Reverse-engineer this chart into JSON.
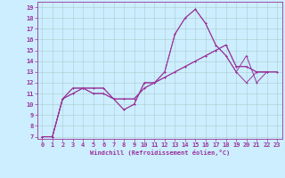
{
  "xlabel": "Windchill (Refroidissement éolien,°C)",
  "bg_color": "#cceeff",
  "line_color": "#993399",
  "grid_color": "#aacccc",
  "xlim": [
    -0.5,
    23.5
  ],
  "ylim": [
    6.8,
    19.5
  ],
  "yticks": [
    7,
    8,
    9,
    10,
    11,
    12,
    13,
    14,
    15,
    16,
    17,
    18,
    19
  ],
  "xticks": [
    0,
    1,
    2,
    3,
    4,
    5,
    6,
    7,
    8,
    9,
    10,
    11,
    12,
    13,
    14,
    15,
    16,
    17,
    18,
    19,
    20,
    21,
    22,
    23
  ],
  "line1_x": [
    0,
    1,
    2,
    3,
    4,
    5,
    6,
    7,
    8,
    9,
    10,
    11,
    12,
    13,
    14,
    15,
    16,
    17,
    18,
    19,
    20,
    21,
    22
  ],
  "line1_y": [
    7.0,
    7.0,
    10.5,
    11.0,
    11.5,
    11.5,
    11.5,
    10.5,
    9.5,
    10.0,
    12.0,
    12.0,
    13.0,
    16.5,
    18.0,
    18.8,
    17.5,
    15.5,
    14.5,
    13.0,
    12.0,
    13.0,
    13.0
  ],
  "line2_x": [
    0,
    1,
    2,
    3,
    4,
    5,
    6,
    7,
    8,
    9,
    10,
    11,
    12,
    13,
    14,
    15,
    16,
    17,
    18,
    19,
    20,
    21,
    22,
    23
  ],
  "line2_y": [
    7.0,
    7.0,
    10.5,
    11.5,
    11.5,
    11.0,
    11.0,
    10.5,
    10.5,
    10.5,
    11.5,
    12.0,
    12.5,
    13.0,
    13.5,
    14.0,
    14.5,
    15.0,
    15.5,
    13.5,
    13.5,
    13.0,
    13.0,
    13.0
  ],
  "line3_x": [
    0,
    1,
    2,
    3,
    4,
    5,
    6,
    7,
    8,
    9,
    10,
    11,
    12,
    13,
    14,
    15,
    16,
    17,
    18,
    19,
    20,
    21,
    22
  ],
  "line3_y": [
    7.0,
    7.0,
    10.5,
    11.0,
    11.5,
    11.5,
    11.5,
    10.5,
    9.5,
    10.0,
    12.0,
    12.0,
    13.0,
    16.5,
    18.0,
    18.8,
    17.5,
    15.5,
    14.5,
    13.0,
    14.5,
    12.0,
    13.0
  ],
  "line4_x": [
    0,
    1,
    2,
    3,
    4,
    5,
    6,
    7,
    8,
    9,
    10,
    11,
    12,
    13,
    14,
    15,
    16,
    17,
    18,
    19,
    20,
    21,
    22,
    23
  ],
  "line4_y": [
    7.0,
    7.0,
    10.5,
    11.5,
    11.5,
    11.0,
    11.0,
    10.5,
    10.5,
    10.5,
    11.5,
    12.0,
    12.5,
    13.0,
    13.5,
    14.0,
    14.5,
    15.0,
    15.5,
    13.5,
    13.5,
    13.0,
    13.0,
    13.0
  ],
  "tick_fontsize": 5,
  "xlabel_fontsize": 5,
  "marker_size": 2,
  "line_width": 0.7
}
